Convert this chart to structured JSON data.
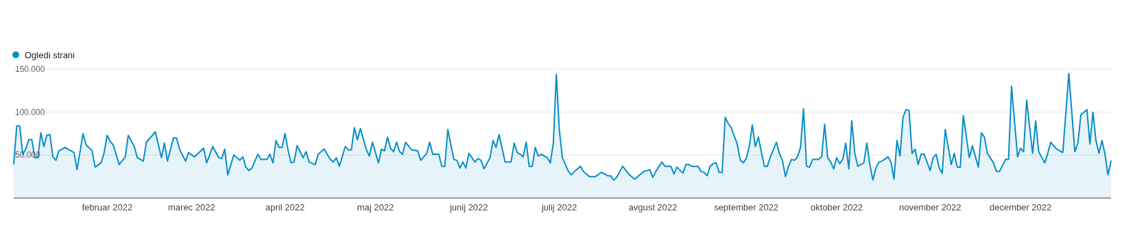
{
  "chart_data": {
    "type": "area",
    "legend": "top left",
    "grid": "y",
    "marker": "none",
    "line_style": "solid",
    "xlim": [
      "2022-01-01",
      "2022-12-31"
    ],
    "xticks": [
      {
        "value": "2022-02-01",
        "label": "februar 2022"
      },
      {
        "value": "2022-03-01",
        "label": "marec 2022"
      },
      {
        "value": "2022-04-01",
        "label": "april 2022"
      },
      {
        "value": "2022-05-01",
        "label": "maj 2022"
      },
      {
        "value": "2022-06-01",
        "label": "junij 2022"
      },
      {
        "value": "2022-07-01",
        "label": "julij 2022"
      },
      {
        "value": "2022-08-01",
        "label": "avgust 2022"
      },
      {
        "value": "2022-09-01",
        "label": "september 2022"
      },
      {
        "value": "2022-10-01",
        "label": "oktober 2022"
      },
      {
        "value": "2022-11-01",
        "label": "november 2022"
      },
      {
        "value": "2022-12-01",
        "label": "december 2022"
      }
    ],
    "ylim": [
      0,
      150000
    ],
    "yticks": [
      {
        "value": 50000,
        "label": "50.000"
      },
      {
        "value": 100000,
        "label": "100.000"
      },
      {
        "value": 150000,
        "label": "150.000"
      }
    ],
    "series": [
      {
        "name": "Ogledi strani",
        "color": "#058dc7",
        "x": [
          "2022-01-01",
          "2022-01-02",
          "2022-01-03",
          "2022-01-04",
          "2022-01-05",
          "2022-01-06",
          "2022-01-07",
          "2022-01-08",
          "2022-01-09",
          "2022-01-10",
          "2022-01-11",
          "2022-01-12",
          "2022-01-13",
          "2022-01-14",
          "2022-01-15",
          "2022-01-16",
          "2022-01-18",
          "2022-01-19",
          "2022-01-21",
          "2022-01-22",
          "2022-01-24",
          "2022-01-25",
          "2022-01-27",
          "2022-01-28",
          "2022-01-30",
          "2022-01-31",
          "2022-02-01",
          "2022-02-02",
          "2022-02-03",
          "2022-02-05",
          "2022-02-07",
          "2022-02-08",
          "2022-02-10",
          "2022-02-11",
          "2022-02-13",
          "2022-02-14",
          "2022-02-17",
          "2022-02-18",
          "2022-02-19",
          "2022-02-20",
          "2022-02-21",
          "2022-02-23",
          "2022-02-24",
          "2022-02-25",
          "2022-02-27",
          "2022-02-28",
          "2022-03-02",
          "2022-03-05",
          "2022-03-06",
          "2022-03-08",
          "2022-03-10",
          "2022-03-11",
          "2022-03-12",
          "2022-03-13",
          "2022-03-15",
          "2022-03-17",
          "2022-03-18",
          "2022-03-19",
          "2022-03-20",
          "2022-03-21",
          "2022-03-23",
          "2022-03-24",
          "2022-03-26",
          "2022-03-27",
          "2022-03-28",
          "2022-03-29",
          "2022-03-30",
          "2022-03-31",
          "2022-04-01",
          "2022-04-02",
          "2022-04-03",
          "2022-04-04",
          "2022-04-05",
          "2022-04-07",
          "2022-04-08",
          "2022-04-09",
          "2022-04-11",
          "2022-04-12",
          "2022-04-14",
          "2022-04-16",
          "2022-04-17",
          "2022-04-18",
          "2022-04-19",
          "2022-04-21",
          "2022-04-22",
          "2022-04-23",
          "2022-04-24",
          "2022-04-25",
          "2022-04-26",
          "2022-04-28",
          "2022-04-29",
          "2022-04-30",
          "2022-05-02",
          "2022-05-03",
          "2022-05-04",
          "2022-05-05",
          "2022-05-06",
          "2022-05-07",
          "2022-05-08",
          "2022-05-09",
          "2022-05-10",
          "2022-05-11",
          "2022-05-13",
          "2022-05-15",
          "2022-05-16",
          "2022-05-18",
          "2022-05-19",
          "2022-05-20",
          "2022-05-22",
          "2022-05-23",
          "2022-05-24",
          "2022-05-25",
          "2022-05-27",
          "2022-05-28",
          "2022-05-29",
          "2022-05-30",
          "2022-05-31",
          "2022-06-01",
          "2022-06-03",
          "2022-06-04",
          "2022-06-05",
          "2022-06-06",
          "2022-06-08",
          "2022-06-09",
          "2022-06-10",
          "2022-06-11",
          "2022-06-13",
          "2022-06-15",
          "2022-06-16",
          "2022-06-17",
          "2022-06-18",
          "2022-06-19",
          "2022-06-20",
          "2022-06-21",
          "2022-06-22",
          "2022-06-23",
          "2022-06-24",
          "2022-06-25",
          "2022-06-27",
          "2022-06-28",
          "2022-06-29",
          "2022-06-30",
          "2022-07-01",
          "2022-07-02",
          "2022-07-04",
          "2022-07-05",
          "2022-07-06",
          "2022-07-08",
          "2022-07-09",
          "2022-07-11",
          "2022-07-13",
          "2022-07-15",
          "2022-07-17",
          "2022-07-18",
          "2022-07-19",
          "2022-07-20",
          "2022-07-22",
          "2022-07-24",
          "2022-07-25",
          "2022-07-26",
          "2022-07-28",
          "2022-07-29",
          "2022-07-31",
          "2022-08-01",
          "2022-08-02",
          "2022-08-04",
          "2022-08-05",
          "2022-08-07",
          "2022-08-08",
          "2022-08-09",
          "2022-08-11",
          "2022-08-12",
          "2022-08-13",
          "2022-08-14",
          "2022-08-16",
          "2022-08-17",
          "2022-08-18",
          "2022-08-19",
          "2022-08-20",
          "2022-08-21",
          "2022-08-22",
          "2022-08-23",
          "2022-08-24",
          "2022-08-25",
          "2022-08-26",
          "2022-08-27",
          "2022-08-29",
          "2022-08-30",
          "2022-08-31",
          "2022-09-01",
          "2022-09-02",
          "2022-09-03",
          "2022-09-04",
          "2022-09-05",
          "2022-09-06",
          "2022-09-07",
          "2022-09-08",
          "2022-09-09",
          "2022-09-11",
          "2022-09-12",
          "2022-09-13",
          "2022-09-14",
          "2022-09-15",
          "2022-09-16",
          "2022-09-17",
          "2022-09-18",
          "2022-09-19",
          "2022-09-20",
          "2022-09-21",
          "2022-09-22",
          "2022-09-23",
          "2022-09-25",
          "2022-09-26",
          "2022-09-27",
          "2022-09-28",
          "2022-09-29",
          "2022-09-30",
          "2022-10-01",
          "2022-10-02",
          "2022-10-03",
          "2022-10-04",
          "2022-10-05",
          "2022-10-06",
          "2022-10-07",
          "2022-10-08",
          "2022-10-10",
          "2022-10-11",
          "2022-10-12",
          "2022-10-13",
          "2022-10-14",
          "2022-10-15",
          "2022-10-16",
          "2022-10-18",
          "2022-10-19",
          "2022-10-20",
          "2022-10-21",
          "2022-10-22",
          "2022-10-23",
          "2022-10-24",
          "2022-10-25",
          "2022-10-26",
          "2022-10-27",
          "2022-10-28",
          "2022-10-29",
          "2022-10-30",
          "2022-11-01",
          "2022-11-02",
          "2022-11-03",
          "2022-11-04",
          "2022-11-05",
          "2022-11-06",
          "2022-11-08",
          "2022-11-09",
          "2022-11-10",
          "2022-11-11",
          "2022-11-12",
          "2022-11-14",
          "2022-11-15",
          "2022-11-17",
          "2022-11-18",
          "2022-11-19",
          "2022-11-20",
          "2022-11-22",
          "2022-11-23",
          "2022-11-24",
          "2022-11-26",
          "2022-11-27",
          "2022-11-28",
          "2022-11-30",
          "2022-12-01",
          "2022-12-02",
          "2022-12-03",
          "2022-12-05",
          "2022-12-06",
          "2022-12-07",
          "2022-12-09",
          "2022-12-10",
          "2022-12-11",
          "2022-12-13",
          "2022-12-15",
          "2022-12-17",
          "2022-12-19",
          "2022-12-20",
          "2022-12-21",
          "2022-12-23",
          "2022-12-24",
          "2022-12-25",
          "2022-12-26",
          "2022-12-27",
          "2022-12-28",
          "2022-12-29",
          "2022-12-30",
          "2022-12-31"
        ],
        "values": [
          40000,
          84000,
          84000,
          51000,
          57000,
          68000,
          68000,
          47000,
          47000,
          76000,
          60000,
          73000,
          74000,
          48000,
          44000,
          55000,
          59000,
          57000,
          53000,
          33000,
          75000,
          62000,
          55000,
          36000,
          41000,
          53000,
          73000,
          66000,
          62000,
          39000,
          48000,
          73000,
          60000,
          47000,
          43000,
          65000,
          77000,
          62000,
          47000,
          64000,
          43000,
          70000,
          70000,
          57000,
          43000,
          53000,
          48000,
          58000,
          41000,
          60000,
          47000,
          46000,
          57000,
          27000,
          50000,
          44000,
          48000,
          36000,
          32000,
          35000,
          51000,
          45000,
          45000,
          51000,
          41000,
          67000,
          59000,
          59000,
          75000,
          56000,
          41000,
          42000,
          61000,
          47000,
          54000,
          42000,
          39000,
          51000,
          57000,
          45000,
          42000,
          47000,
          37000,
          60000,
          56000,
          56000,
          82000,
          68000,
          81000,
          56000,
          49000,
          65000,
          41000,
          57000,
          55000,
          71000,
          58000,
          54000,
          65000,
          54000,
          51000,
          65000,
          56000,
          55000,
          44000,
          52000,
          65000,
          51000,
          51000,
          37000,
          37000,
          80000,
          45000,
          44000,
          35000,
          42000,
          35000,
          52000,
          42000,
          46000,
          44000,
          34000,
          47000,
          67000,
          59000,
          74000,
          42000,
          42000,
          64000,
          53000,
          51000,
          48000,
          65000,
          37000,
          37000,
          59000,
          49000,
          51000,
          47000,
          41000,
          64000,
          144000,
          79000,
          47000,
          31000,
          27000,
          31000,
          37000,
          31000,
          25000,
          25000,
          30000,
          26000,
          26000,
          21000,
          24000,
          37000,
          28000,
          25000,
          22000,
          28000,
          31000,
          33000,
          24000,
          31000,
          42000,
          37000,
          37000,
          28000,
          36000,
          29000,
          39000,
          39000,
          37000,
          37000,
          31000,
          30000,
          26000,
          37000,
          40000,
          41000,
          30000,
          30000,
          94000,
          87000,
          82000,
          63000,
          44000,
          41000,
          46000,
          60000,
          85000,
          60000,
          71000,
          54000,
          37000,
          37000,
          48000,
          65000,
          52000,
          44000,
          25000,
          37000,
          45000,
          44000,
          48000,
          59000,
          104000,
          37000,
          36000,
          45000,
          45000,
          48000,
          86000,
          47000,
          42000,
          34000,
          47000,
          40000,
          45000,
          64000,
          34000,
          90000,
          52000,
          37000,
          41000,
          64000,
          39000,
          21000,
          35000,
          42000,
          43000,
          48000,
          42000,
          22000,
          67000,
          49000,
          94000,
          103000,
          102000,
          52000,
          57000,
          39000,
          51000,
          51000,
          32000,
          47000,
          51000,
          35000,
          29000,
          80000,
          39000,
          52000,
          36000,
          36000,
          96000,
          47000,
          61000,
          36000,
          76000,
          71000,
          52000,
          41000,
          31000,
          31000,
          45000,
          45000,
          130000,
          48000,
          58000,
          54000,
          114000,
          52000,
          90000,
          54000,
          41000,
          52000,
          65000,
          57000,
          53000,
          145000,
          54000,
          64000,
          97000,
          103000,
          63000,
          100000,
          67000,
          52000,
          67000,
          51000,
          27000,
          43000
        ]
      }
    ]
  }
}
